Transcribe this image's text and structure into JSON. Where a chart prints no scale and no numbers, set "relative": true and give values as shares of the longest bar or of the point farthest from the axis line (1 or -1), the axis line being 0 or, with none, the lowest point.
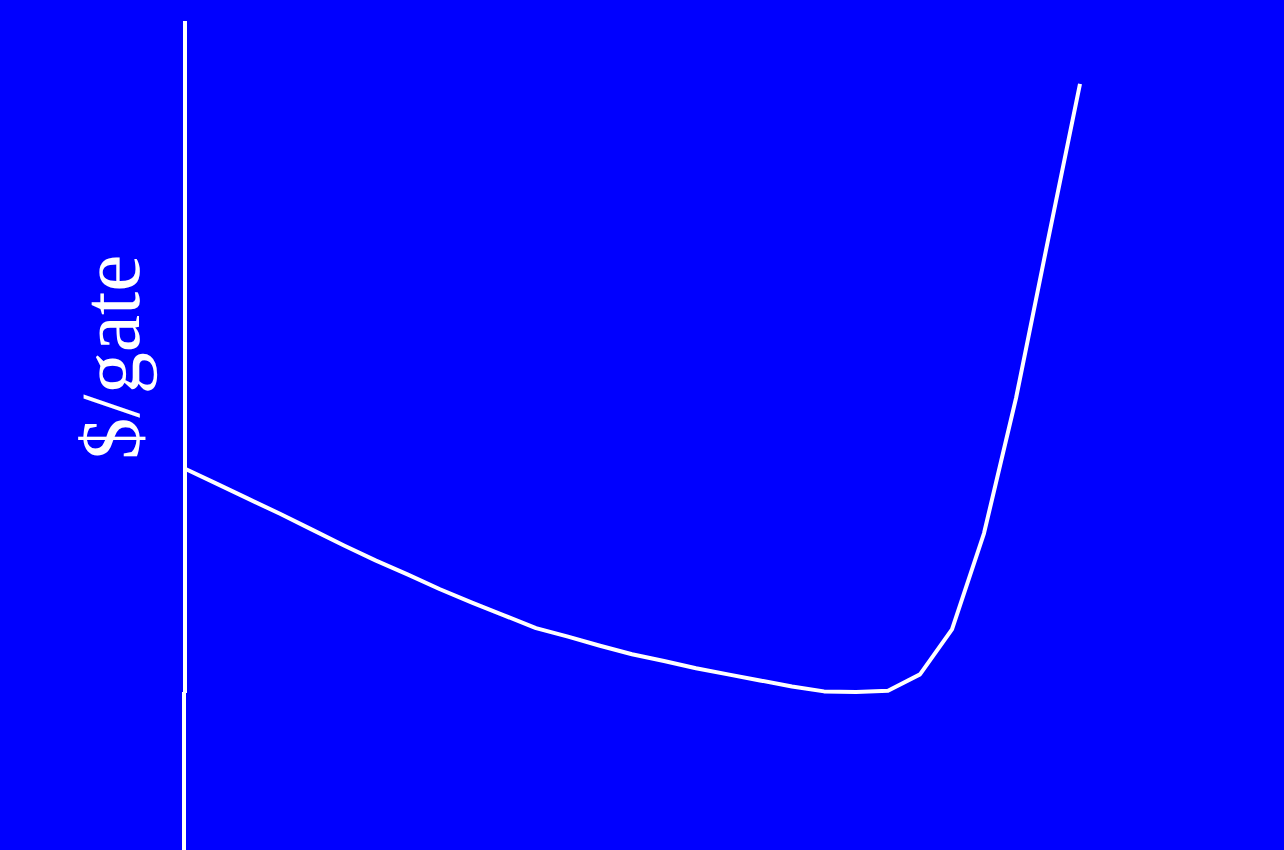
{
  "chart_data": {
    "type": "line",
    "relative": true,
    "ylabel": "$/gate",
    "categories": [
      null,
      null,
      null,
      null,
      null,
      null,
      null,
      null,
      null,
      null,
      null,
      null,
      null,
      null,
      null,
      null,
      null,
      null,
      null,
      null,
      null,
      null,
      null,
      null,
      null,
      null,
      null,
      null,
      null
    ],
    "series": [
      {
        "color": "#ffffff",
        "values": [
          0.368,
          0.343,
          0.318,
          0.293,
          0.267,
          0.241,
          0.216,
          0.193,
          0.169,
          0.147,
          0.126,
          0.105,
          0.091,
          0.076,
          0.062,
          0.051,
          0.039,
          0.029,
          0.019,
          0.009,
          0.001,
          0,
          0.002,
          0.029,
          0.103,
          0.261,
          0.483,
          0.743,
          1
        ]
      }
    ],
    "grid": false,
    "marker": "none",
    "line_style": "solid"
  }
}
